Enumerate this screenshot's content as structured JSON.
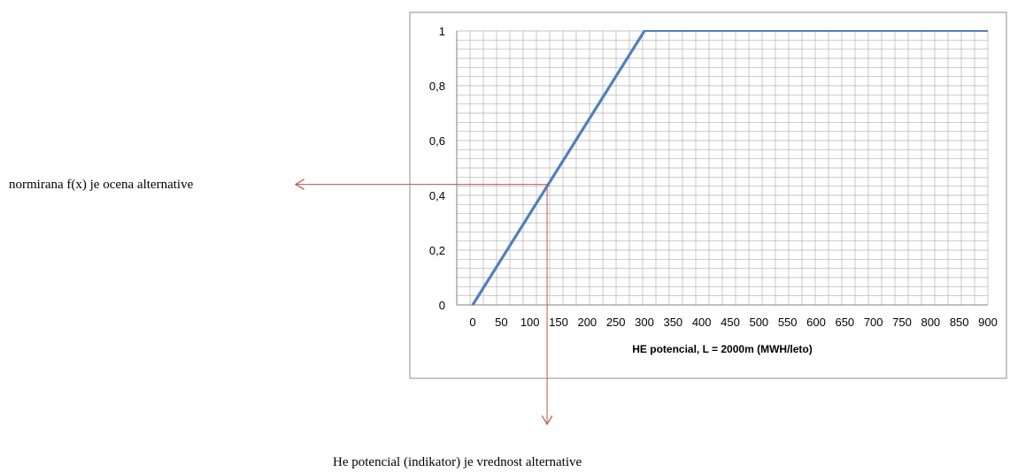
{
  "chart_data": {
    "type": "line",
    "title": "",
    "xlabel": "HE potencial,  L = 2000m (MWH/leto)",
    "ylabel": "",
    "xlim": [
      0,
      900
    ],
    "ylim": [
      0,
      1
    ],
    "x_ticks": [
      "0",
      "50",
      "100",
      "150",
      "200",
      "250",
      "300",
      "350",
      "400",
      "450",
      "500",
      "550",
      "600",
      "650",
      "700",
      "750",
      "800",
      "850",
      "900"
    ],
    "y_ticks": [
      "0",
      "0,2",
      "0,4",
      "0,6",
      "0,8",
      "1"
    ],
    "grid": true,
    "legend": "none",
    "series": [
      {
        "x": [
          0,
          300,
          900
        ],
        "y": [
          0,
          1,
          1
        ]
      }
    ],
    "annotations": [
      {
        "text": "normirana f(x) je ocena alternative",
        "x": 130,
        "y": 0.44
      },
      {
        "text": "He potencial (indikator) je vrednost alternative",
        "x": 130,
        "y": 0.44
      }
    ],
    "colors": {
      "line": "#4f81bd",
      "annotation": "#c0504d",
      "grid": "#b0b0b0",
      "frame": "#8c8c8c"
    }
  }
}
